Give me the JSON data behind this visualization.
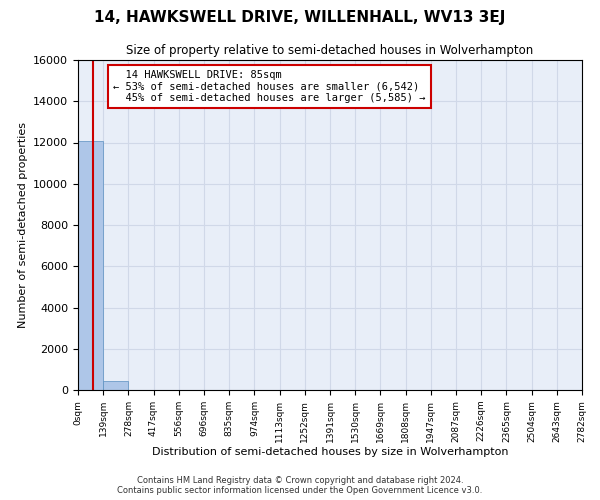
{
  "title": "14, HAWKSWELL DRIVE, WILLENHALL, WV13 3EJ",
  "subtitle": "Size of property relative to semi-detached houses in Wolverhampton",
  "xlabel": "Distribution of semi-detached houses by size in Wolverhampton",
  "ylabel": "Number of semi-detached properties",
  "footer_line1": "Contains HM Land Registry data © Crown copyright and database right 2024.",
  "footer_line2": "Contains public sector information licensed under the Open Government Licence v3.0.",
  "property_size": 85,
  "property_label": "14 HAWKSWELL DRIVE: 85sqm",
  "pct_smaller": 53,
  "pct_smaller_count": 6542,
  "pct_larger": 45,
  "pct_larger_count": 5585,
  "bin_edges": [
    0,
    139,
    278,
    417,
    556,
    696,
    835,
    974,
    1113,
    1252,
    1391,
    1530,
    1669,
    1808,
    1947,
    2087,
    2226,
    2365,
    2504,
    2643,
    2782
  ],
  "bar_heights": [
    12050,
    430,
    0,
    0,
    0,
    0,
    0,
    0,
    0,
    0,
    0,
    0,
    0,
    0,
    0,
    0,
    0,
    0,
    0,
    0
  ],
  "bar_color": "#aec6e8",
  "bar_edgecolor": "#5a8fc0",
  "grid_color": "#d0d8e8",
  "background_color": "#e8eef8",
  "vline_color": "#cc0000",
  "annotation_box_edgecolor": "#cc0000",
  "ylim": [
    0,
    16000
  ],
  "yticks": [
    0,
    2000,
    4000,
    6000,
    8000,
    10000,
    12000,
    14000,
    16000
  ]
}
